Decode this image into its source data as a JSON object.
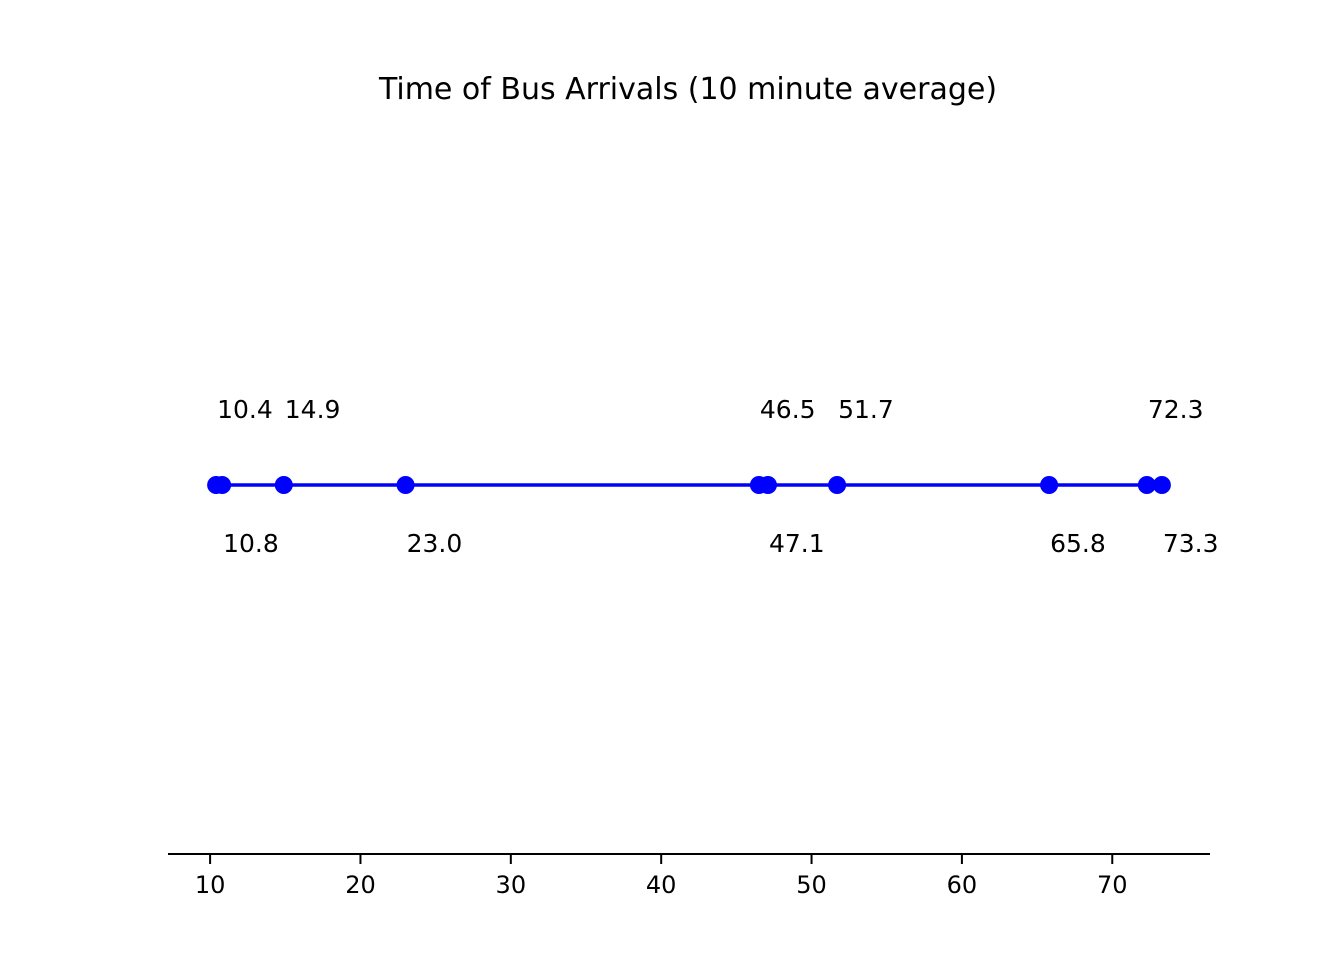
{
  "chart_data": {
    "type": "scatter",
    "title": "Time of Bus Arrivals (10 minute average)",
    "xlabel": "",
    "ylabel": "",
    "xlim": [
      7.2,
      76.5
    ],
    "xticks": [
      10,
      20,
      30,
      40,
      50,
      60,
      70
    ],
    "xtick_labels": [
      "10",
      "20",
      "30",
      "40",
      "50",
      "60",
      "70"
    ],
    "grid": false,
    "series": [
      {
        "x": [
          10.4,
          10.8,
          14.9,
          23.0,
          46.5,
          47.1,
          51.7,
          65.8,
          72.3,
          73.3
        ],
        "color": "#0000ff"
      }
    ],
    "data_labels": [
      {
        "x": 10.4,
        "text": "10.4",
        "position": "above"
      },
      {
        "x": 10.8,
        "text": "10.8",
        "position": "below"
      },
      {
        "x": 14.9,
        "text": "14.9",
        "position": "above"
      },
      {
        "x": 23.0,
        "text": "23.0",
        "position": "below"
      },
      {
        "x": 46.5,
        "text": "46.5",
        "position": "above"
      },
      {
        "x": 47.1,
        "text": "47.1",
        "position": "below"
      },
      {
        "x": 51.7,
        "text": "51.7",
        "position": "above"
      },
      {
        "x": 65.8,
        "text": "65.8",
        "position": "below"
      },
      {
        "x": 72.3,
        "text": "72.3",
        "position": "above"
      },
      {
        "x": 73.3,
        "text": "73.3",
        "position": "below"
      }
    ]
  }
}
